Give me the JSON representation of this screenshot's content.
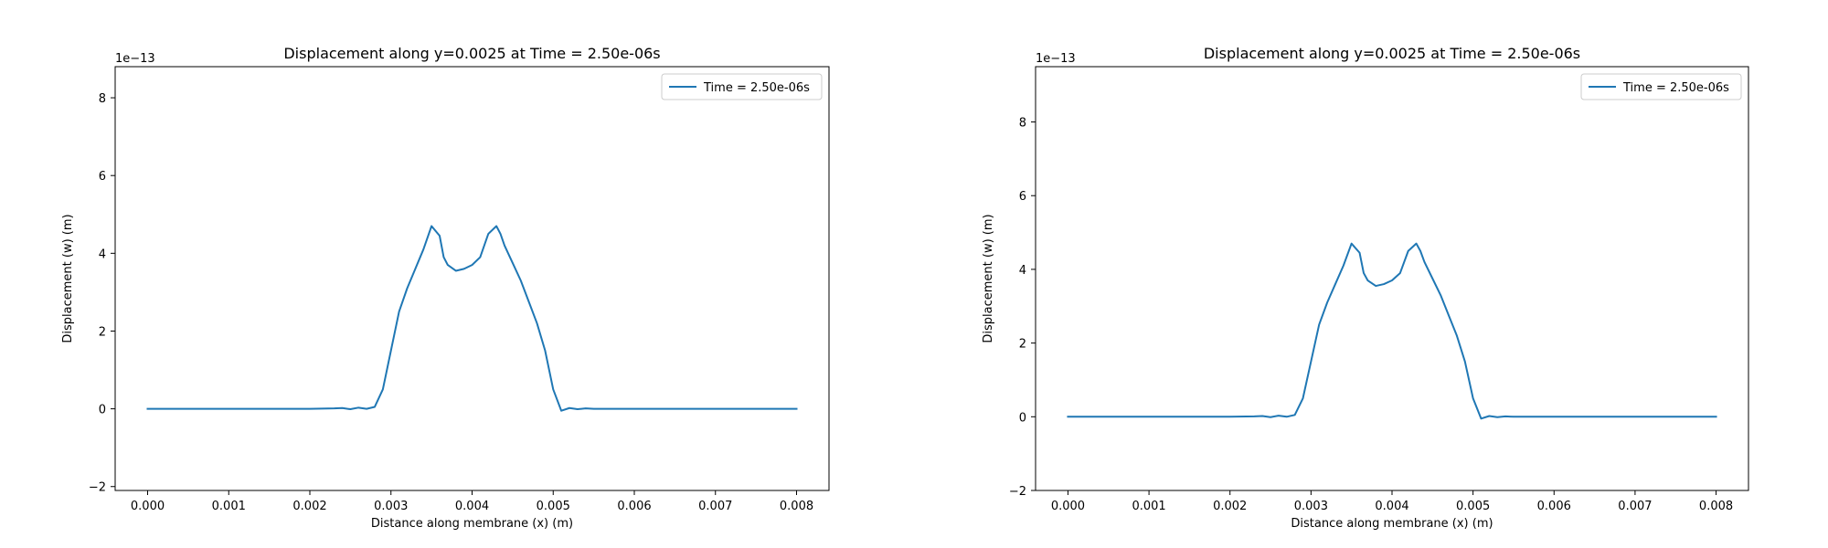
{
  "figure": {
    "background": "#ffffff"
  },
  "chart_data": [
    {
      "type": "line",
      "title": "Displacement along y=0.0025 at Time = 2.50e-06s",
      "xlabel": "Distance along membrane (x) (m)",
      "ylabel": "Displacement (w) (m)",
      "y_offset_text": "1e−13",
      "y_scale_exponent": -13,
      "xlim": [
        -0.0004,
        0.0084
      ],
      "ylim": [
        -2.1,
        8.8
      ],
      "x_ticks": [
        0.0,
        0.001,
        0.002,
        0.003,
        0.004,
        0.005,
        0.006,
        0.007,
        0.008
      ],
      "x_tick_labels": [
        "0.000",
        "0.001",
        "0.002",
        "0.003",
        "0.004",
        "0.005",
        "0.006",
        "0.007",
        "0.008"
      ],
      "y_ticks": [
        -2,
        0,
        2,
        4,
        6,
        8
      ],
      "y_tick_labels": [
        "−2",
        "0",
        "2",
        "4",
        "6",
        "8"
      ],
      "grid": false,
      "legend_position": "top-right",
      "series": [
        {
          "name": "Time = 2.50e-06s",
          "color": "#1f77b4",
          "x": [
            0.0,
            0.0005,
            0.001,
            0.0015,
            0.002,
            0.0023,
            0.0024,
            0.0025,
            0.0026,
            0.0027,
            0.0028,
            0.0029,
            0.003,
            0.0031,
            0.0032,
            0.0033,
            0.0034,
            0.0035,
            0.0036,
            0.00365,
            0.0037,
            0.0038,
            0.0039,
            0.004,
            0.0041,
            0.0042,
            0.0043,
            0.00435,
            0.0044,
            0.0045,
            0.0046,
            0.0047,
            0.0048,
            0.0049,
            0.005,
            0.0051,
            0.0052,
            0.0053,
            0.0054,
            0.0055,
            0.0056,
            0.006,
            0.007,
            0.008
          ],
          "y": [
            0.0,
            0.0,
            0.0,
            0.0,
            0.0,
            0.01,
            0.02,
            -0.01,
            0.03,
            0.0,
            0.05,
            0.5,
            1.5,
            2.5,
            3.1,
            3.6,
            4.1,
            4.7,
            4.45,
            3.9,
            3.7,
            3.55,
            3.6,
            3.7,
            3.9,
            4.5,
            4.7,
            4.5,
            4.2,
            3.75,
            3.3,
            2.75,
            2.2,
            1.5,
            0.5,
            -0.05,
            0.02,
            -0.01,
            0.01,
            0.0,
            0.0,
            0.0,
            0.0,
            0.0
          ]
        }
      ]
    },
    {
      "type": "line",
      "title": "Displacement along y=0.0025 at Time = 2.50e-06s",
      "xlabel": "Distance along membrane (x) (m)",
      "ylabel": "Displacement (w) (m)",
      "y_offset_text": "1e−13",
      "y_scale_exponent": -13,
      "xlim": [
        -0.0004,
        0.0084
      ],
      "ylim": [
        -2.0,
        9.5
      ],
      "x_ticks": [
        0.0,
        0.001,
        0.002,
        0.003,
        0.004,
        0.005,
        0.006,
        0.007,
        0.008
      ],
      "x_tick_labels": [
        "0.000",
        "0.001",
        "0.002",
        "0.003",
        "0.004",
        "0.005",
        "0.006",
        "0.007",
        "0.008"
      ],
      "y_ticks": [
        -2,
        0,
        2,
        4,
        6,
        8
      ],
      "y_tick_labels": [
        "−2",
        "0",
        "2",
        "4",
        "6",
        "8"
      ],
      "grid": false,
      "legend_position": "top-right",
      "series": [
        {
          "name": "Time = 2.50e-06s",
          "color": "#1f77b4",
          "x": [
            0.0,
            0.0005,
            0.001,
            0.0015,
            0.002,
            0.0023,
            0.0024,
            0.0025,
            0.0026,
            0.0027,
            0.0028,
            0.0029,
            0.003,
            0.0031,
            0.0032,
            0.0033,
            0.0034,
            0.0035,
            0.0036,
            0.00365,
            0.0037,
            0.0038,
            0.0039,
            0.004,
            0.0041,
            0.0042,
            0.0043,
            0.00435,
            0.0044,
            0.0045,
            0.0046,
            0.0047,
            0.0048,
            0.0049,
            0.005,
            0.0051,
            0.0052,
            0.0053,
            0.0054,
            0.0055,
            0.0056,
            0.006,
            0.007,
            0.008
          ],
          "y": [
            0.0,
            0.0,
            0.0,
            0.0,
            0.0,
            0.01,
            0.02,
            -0.01,
            0.03,
            0.0,
            0.05,
            0.5,
            1.5,
            2.5,
            3.1,
            3.6,
            4.1,
            4.7,
            4.45,
            3.9,
            3.7,
            3.55,
            3.6,
            3.7,
            3.9,
            4.5,
            4.7,
            4.5,
            4.2,
            3.75,
            3.3,
            2.75,
            2.2,
            1.5,
            0.5,
            -0.05,
            0.02,
            -0.01,
            0.01,
            0.0,
            0.0,
            0.0,
            0.0,
            0.0
          ]
        }
      ]
    }
  ]
}
